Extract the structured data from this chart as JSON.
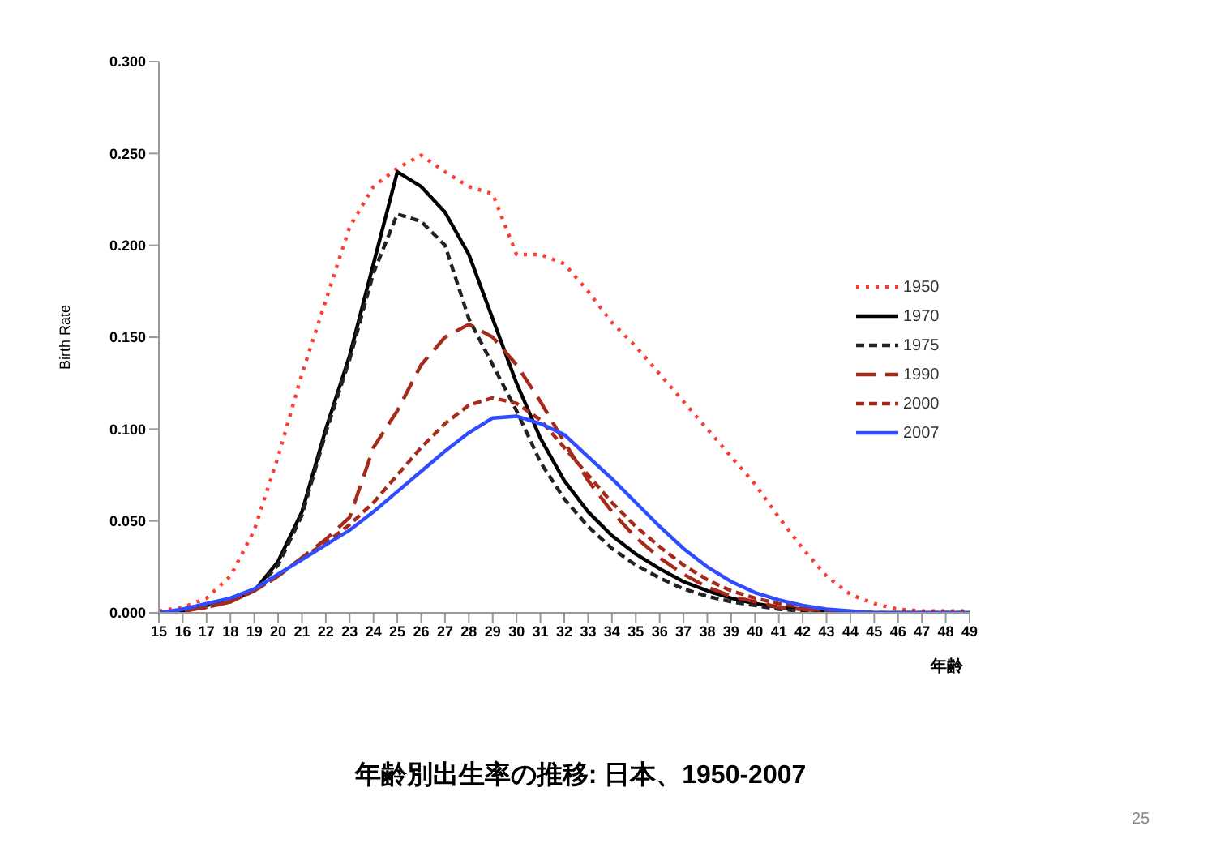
{
  "chart_data": {
    "type": "line",
    "title": "年齢別出生率の推移: 日本、1950-2007",
    "xlabel": "年齢",
    "ylabel": "Birth Rate",
    "annotations": [
      "25"
    ],
    "categories": [
      "15",
      "16",
      "17",
      "18",
      "19",
      "20",
      "21",
      "22",
      "23",
      "24",
      "25",
      "26",
      "27",
      "28",
      "29",
      "30",
      "31",
      "32",
      "33",
      "34",
      "35",
      "36",
      "37",
      "38",
      "39",
      "40",
      "41",
      "42",
      "43",
      "44",
      "45",
      "46",
      "47",
      "48",
      "49"
    ],
    "ylim": [
      0,
      0.3
    ],
    "yticks": [
      {
        "value": 0,
        "label": "0.000"
      },
      {
        "value": 0.05,
        "label": "0.050"
      },
      {
        "value": 0.1,
        "label": "0.100"
      },
      {
        "value": 0.15,
        "label": "0.150"
      },
      {
        "value": 0.2,
        "label": "0.200"
      },
      {
        "value": 0.25,
        "label": "0.250"
      },
      {
        "value": 0.3,
        "label": "0.300"
      }
    ],
    "grid": false,
    "legend": "right",
    "marker": "none",
    "series": [
      {
        "name": "1950",
        "color": "#ff3b30",
        "line_style": "dotted",
        "values": [
          0.001,
          0.003,
          0.008,
          0.02,
          0.045,
          0.085,
          0.13,
          0.17,
          0.21,
          0.232,
          0.242,
          0.249,
          0.24,
          0.232,
          0.228,
          0.195,
          0.195,
          0.19,
          0.175,
          0.158,
          0.145,
          0.13,
          0.115,
          0.1,
          0.085,
          0.07,
          0.052,
          0.035,
          0.02,
          0.01,
          0.005,
          0.002,
          0.001,
          0.001,
          0.001
        ]
      },
      {
        "name": "1970",
        "color": "#000000",
        "line_style": "solid",
        "values": [
          0,
          0.001,
          0.004,
          0.007,
          0.012,
          0.028,
          0.055,
          0.1,
          0.14,
          0.19,
          0.24,
          0.232,
          0.218,
          0.195,
          0.16,
          0.125,
          0.095,
          0.072,
          0.055,
          0.042,
          0.032,
          0.024,
          0.017,
          0.012,
          0.008,
          0.005,
          0.003,
          0.002,
          0.001,
          0,
          0,
          0,
          0,
          0,
          0
        ]
      },
      {
        "name": "1975",
        "color": "#222222",
        "line_style": "dashed",
        "values": [
          0,
          0.001,
          0.004,
          0.007,
          0.012,
          0.026,
          0.053,
          0.098,
          0.138,
          0.185,
          0.217,
          0.213,
          0.2,
          0.16,
          0.135,
          0.11,
          0.082,
          0.062,
          0.047,
          0.035,
          0.026,
          0.019,
          0.013,
          0.009,
          0.006,
          0.004,
          0.002,
          0.001,
          0,
          0,
          0,
          0,
          0,
          0,
          0
        ]
      },
      {
        "name": "1990",
        "color": "#a52a1a",
        "line_style": "longdash",
        "values": [
          0,
          0.001,
          0.003,
          0.006,
          0.012,
          0.02,
          0.03,
          0.04,
          0.052,
          0.09,
          0.11,
          0.135,
          0.15,
          0.157,
          0.15,
          0.135,
          0.115,
          0.093,
          0.072,
          0.055,
          0.041,
          0.03,
          0.021,
          0.014,
          0.009,
          0.006,
          0.003,
          0.002,
          0.001,
          0,
          0,
          null,
          null,
          null,
          null
        ]
      },
      {
        "name": "2000",
        "color": "#a52a1a",
        "line_style": "dashed",
        "values": [
          0,
          0.001,
          0.003,
          0.006,
          0.012,
          0.02,
          0.03,
          0.038,
          0.048,
          0.06,
          0.075,
          0.09,
          0.103,
          0.113,
          0.117,
          0.114,
          0.105,
          0.09,
          0.075,
          0.06,
          0.047,
          0.036,
          0.026,
          0.018,
          0.012,
          0.008,
          0.005,
          0.003,
          0.001,
          0,
          0,
          null,
          null,
          null,
          null
        ]
      },
      {
        "name": "2007",
        "color": "#2f4cff",
        "line_style": "solid",
        "values": [
          0,
          0.002,
          0.005,
          0.008,
          0.013,
          0.021,
          0.029,
          0.037,
          0.045,
          0.055,
          0.066,
          0.077,
          0.088,
          0.098,
          0.106,
          0.107,
          0.103,
          0.097,
          0.085,
          0.073,
          0.06,
          0.047,
          0.035,
          0.025,
          0.017,
          0.011,
          0.007,
          0.004,
          0.002,
          0.001,
          0,
          0,
          0,
          0,
          0
        ]
      }
    ]
  }
}
